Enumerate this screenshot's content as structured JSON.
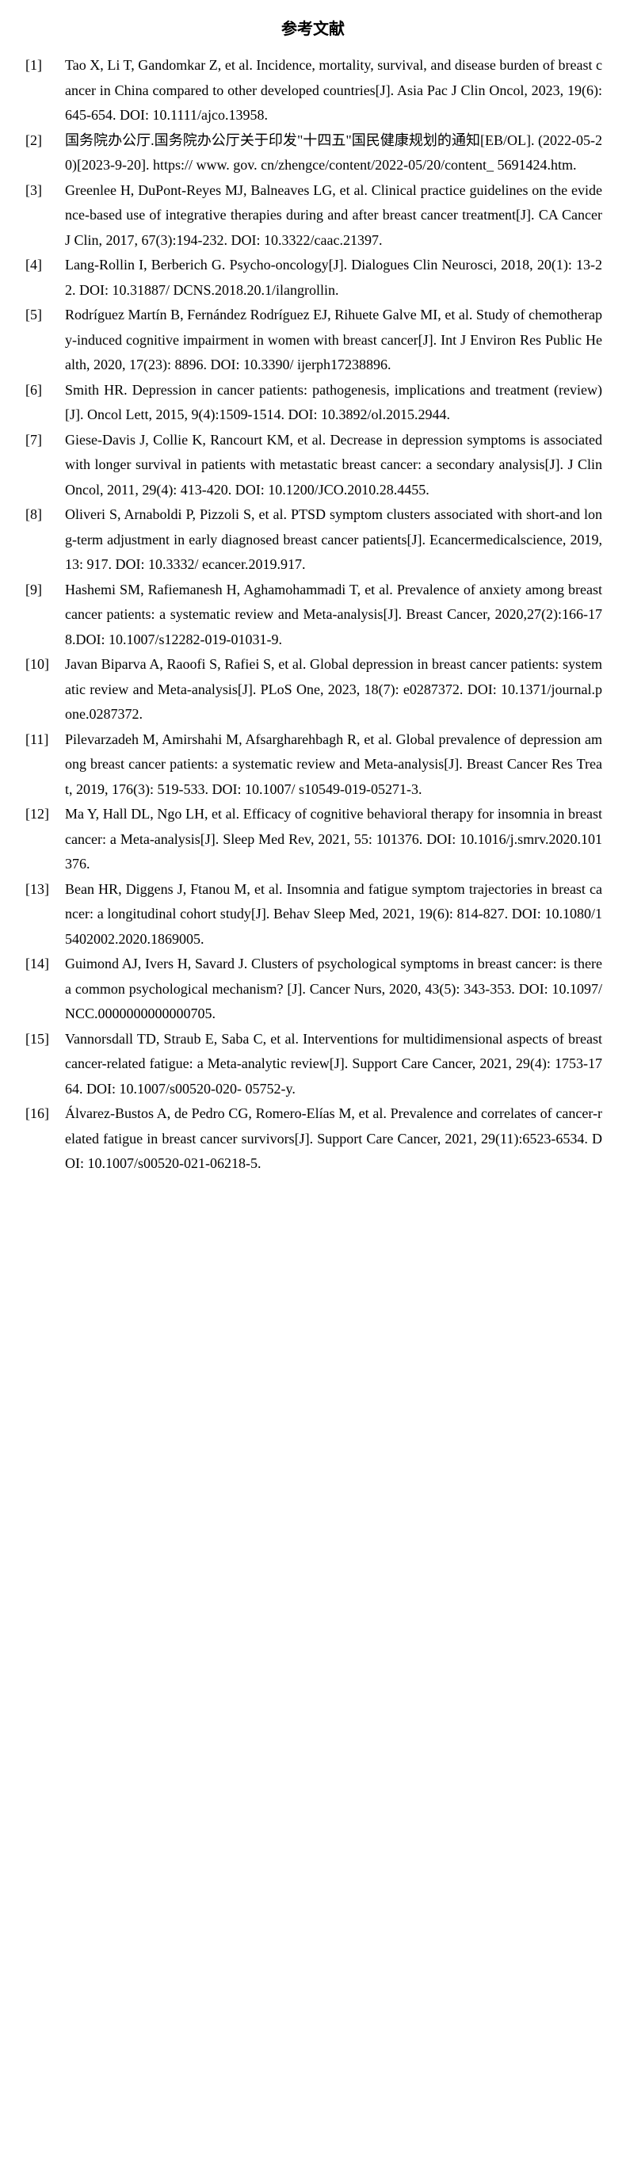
{
  "title": "参考文献",
  "references": [
    {
      "num": "[1]",
      "text": "Tao X, Li T, Gandomkar Z, et al. Incidence, mortality, survival, and disease burden of breast cancer in China compared to other developed countries[J]. Asia Pac J Clin Oncol, 2023, 19(6):645-654. DOI: 10.1111/ajco.13958."
    },
    {
      "num": "[2]",
      "text": "国务院办公厅.国务院办公厅关于印发\"十四五\"国民健康规划的通知[EB/OL]. (2022-05-20)[2023-9-20]. https:// www. gov. cn/zhengce/content/2022-05/20/content_ 5691424.htm."
    },
    {
      "num": "[3]",
      "text": "Greenlee H, DuPont-Reyes MJ, Balneaves LG, et al. Clinical practice guidelines on the evidence-based use of integrative therapies during and after breast cancer treatment[J]. CA Cancer J Clin, 2017, 67(3):194-232. DOI: 10.3322/caac.21397."
    },
    {
      "num": "[4]",
      "text": "Lang-Rollin I, Berberich G. Psycho-oncology[J]. Dialogues Clin Neurosci, 2018, 20(1): 13-22. DOI: 10.31887/ DCNS.2018.20.1/ilangrollin."
    },
    {
      "num": "[5]",
      "text": "Rodríguez Martín B, Fernández Rodríguez EJ, Rihuete Galve MI, et al. Study of chemotherapy-induced cognitive impairment in women with breast cancer[J]. Int J Environ Res Public Health, 2020, 17(23): 8896. DOI: 10.3390/ ijerph17238896."
    },
    {
      "num": "[6]",
      "text": "Smith HR. Depression in cancer patients: pathogenesis, implications and treatment (review)[J]. Oncol Lett, 2015, 9(4):1509-1514. DOI: 10.3892/ol.2015.2944."
    },
    {
      "num": "[7]",
      "text": "Giese-Davis J, Collie K, Rancourt KM, et al. Decrease in depression symptoms is associated with longer survival in patients with metastatic breast cancer: a secondary analysis[J]. J Clin Oncol, 2011, 29(4): 413-420. DOI: 10.1200/JCO.2010.28.4455."
    },
    {
      "num": "[8]",
      "text": "Oliveri S, Arnaboldi P, Pizzoli S, et al. PTSD symptom clusters associated with short-and long-term adjustment in early diagnosed breast cancer patients[J]. Ecancermedicalscience, 2019, 13: 917. DOI: 10.3332/ ecancer.2019.917."
    },
    {
      "num": "[9]",
      "text": "Hashemi SM, Rafiemanesh H, Aghamohammadi T, et al. Prevalence of anxiety among breast cancer patients: a systematic review and Meta-analysis[J]. Breast Cancer, 2020,27(2):166-178.DOI: 10.1007/s12282-019-01031-9."
    },
    {
      "num": "[10]",
      "text": "Javan Biparva A, Raoofi S, Rafiei S, et al. Global depression in breast cancer patients: systematic review and Meta-analysis[J]. PLoS One, 2023, 18(7): e0287372. DOI: 10.1371/journal.pone.0287372."
    },
    {
      "num": "[11]",
      "text": "Pilevarzadeh M, Amirshahi M, Afsargharehbagh R, et al. Global prevalence of depression among breast cancer patients: a systematic review and Meta-analysis[J]. Breast Cancer Res Treat, 2019, 176(3): 519-533. DOI: 10.1007/ s10549-019-05271-3."
    },
    {
      "num": "[12]",
      "text": "Ma Y, Hall DL, Ngo LH, et al. Efficacy of cognitive behavioral therapy for insomnia in breast cancer: a Meta-analysis[J]. Sleep Med Rev, 2021, 55: 101376. DOI: 10.1016/j.smrv.2020.101376."
    },
    {
      "num": "[13]",
      "text": "Bean HR, Diggens J, Ftanou M, et al. Insomnia and fatigue symptom trajectories in breast cancer: a longitudinal cohort study[J]. Behav Sleep Med, 2021, 19(6): 814-827. DOI: 10.1080/15402002.2020.1869005."
    },
    {
      "num": "[14]",
      "text": "Guimond AJ, Ivers H, Savard J. Clusters of psychological symptoms in breast cancer: is there a common psychological mechanism? [J]. Cancer Nurs, 2020, 43(5): 343-353. DOI: 10.1097/NCC.0000000000000705."
    },
    {
      "num": "[15]",
      "text": "Vannorsdall TD, Straub E, Saba C, et al. Interventions for multidimensional aspects of breast cancer-related fatigue: a Meta-analytic review[J]. Support Care Cancer, 2021, 29(4): 1753-1764. DOI: 10.1007/s00520-020- 05752-y."
    },
    {
      "num": "[16]",
      "text": "Álvarez-Bustos A, de Pedro CG, Romero-Elías M, et al. Prevalence and correlates of cancer-related fatigue in breast cancer survivors[J]. Support Care Cancer, 2021, 29(11):6523-6534. DOI: 10.1007/s00520-021-06218-5."
    }
  ]
}
